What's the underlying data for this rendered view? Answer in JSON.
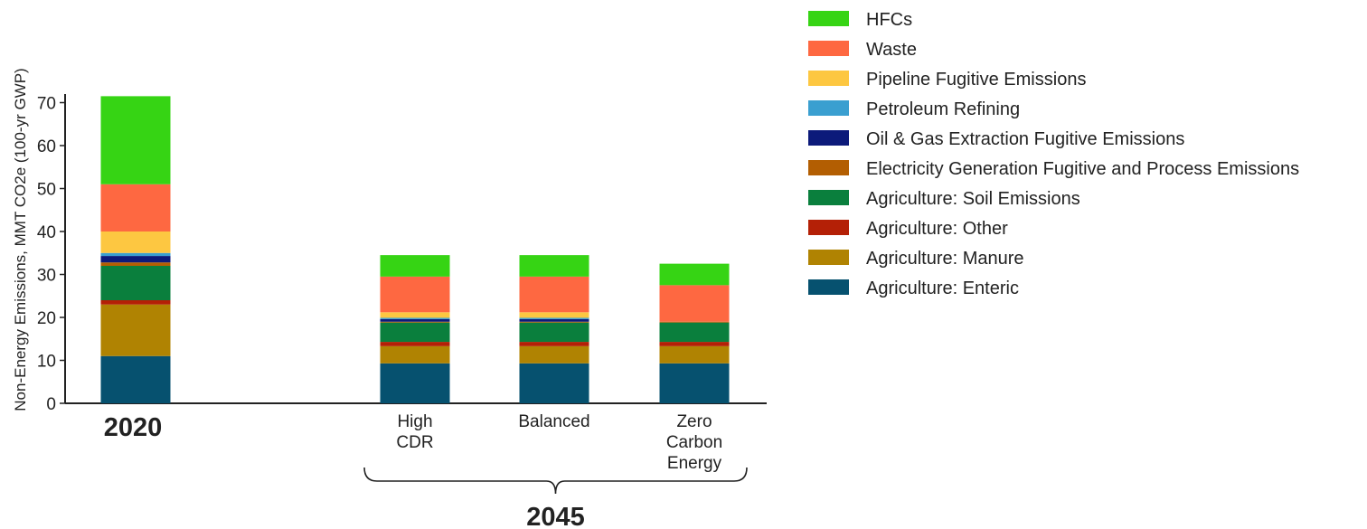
{
  "chart_data": {
    "type": "bar",
    "stacked": true,
    "title": "",
    "ylabel": "Non-Energy Emissions, MMT CO2e (100-yr GWP)",
    "ylim": [
      0,
      72
    ],
    "yticks": [
      0,
      10,
      20,
      30,
      40,
      50,
      60,
      70
    ],
    "categories": [
      "2020",
      "High CDR",
      "Balanced",
      "Zero Carbon Energy"
    ],
    "category_label_lines": [
      [
        "2020"
      ],
      [
        "High",
        "CDR"
      ],
      [
        "Balanced"
      ],
      [
        "Zero",
        "Carbon",
        "Energy"
      ]
    ],
    "group_label": "2045",
    "legend_position": "right",
    "series": [
      {
        "name": "Agriculture: Enteric",
        "color": "#06516F",
        "values": [
          11.0,
          9.3,
          9.3,
          9.3
        ]
      },
      {
        "name": "Agriculture: Manure",
        "color": "#B08302",
        "values": [
          12.0,
          4.0,
          4.0,
          4.0
        ]
      },
      {
        "name": "Agriculture: Other",
        "color": "#B42006",
        "values": [
          1.0,
          1.0,
          1.0,
          1.0
        ]
      },
      {
        "name": "Agriculture: Soil Emissions",
        "color": "#0A7F3D",
        "values": [
          8.0,
          4.5,
          4.5,
          4.5
        ]
      },
      {
        "name": "Electricity Generation Fugitive and Process Emissions",
        "color": "#B35E02",
        "values": [
          0.8,
          0.2,
          0.2,
          0.2
        ]
      },
      {
        "name": "Oil & Gas Extraction Fugitive Emissions",
        "color": "#0C1A7A",
        "values": [
          1.5,
          0.6,
          0.6,
          0.0
        ]
      },
      {
        "name": "Petroleum Refining",
        "color": "#3A9FD0",
        "values": [
          0.7,
          0.3,
          0.3,
          0.0
        ]
      },
      {
        "name": "Pipeline Fugitive Emissions",
        "color": "#FDC741",
        "values": [
          5.0,
          1.3,
          1.3,
          0.0
        ]
      },
      {
        "name": "Waste",
        "color": "#FE6841",
        "values": [
          11.0,
          8.3,
          8.3,
          8.5
        ]
      },
      {
        "name": "HFCs",
        "color": "#36D414",
        "values": [
          20.5,
          5.0,
          5.0,
          5.0
        ]
      }
    ],
    "legend_order": [
      "HFCs",
      "Waste",
      "Pipeline Fugitive Emissions",
      "Petroleum Refining",
      "Oil & Gas Extraction Fugitive Emissions",
      "Electricity Generation Fugitive and Process Emissions",
      "Agriculture: Soil Emissions",
      "Agriculture: Other",
      "Agriculture: Manure",
      "Agriculture: Enteric"
    ]
  }
}
